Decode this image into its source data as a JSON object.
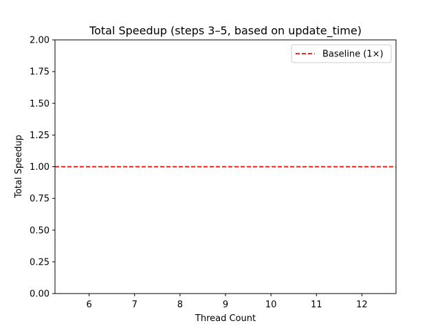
{
  "chart_data": {
    "type": "line",
    "title": "Total Speedup (steps 3–5, based on update_time)",
    "xlabel": "Thread Count",
    "ylabel": "Total Speedup",
    "xlim": [
      5.25,
      12.75
    ],
    "ylim": [
      0.0,
      2.0
    ],
    "x_ticks": [
      6,
      7,
      8,
      9,
      10,
      11,
      12
    ],
    "x_tick_labels": [
      "6",
      "7",
      "8",
      "9",
      "10",
      "11",
      "12"
    ],
    "y_ticks": [
      0.0,
      0.25,
      0.5,
      0.75,
      1.0,
      1.25,
      1.5,
      1.75,
      2.0
    ],
    "y_tick_labels": [
      "0.00",
      "0.25",
      "0.50",
      "0.75",
      "1.00",
      "1.25",
      "1.50",
      "1.75",
      "2.00"
    ],
    "grid": false,
    "legend_position": "top-right",
    "series": [
      {
        "name": "Baseline (1×)",
        "kind": "hline",
        "y": 1.0,
        "color": "#ff0000",
        "style": "dashed"
      }
    ]
  }
}
